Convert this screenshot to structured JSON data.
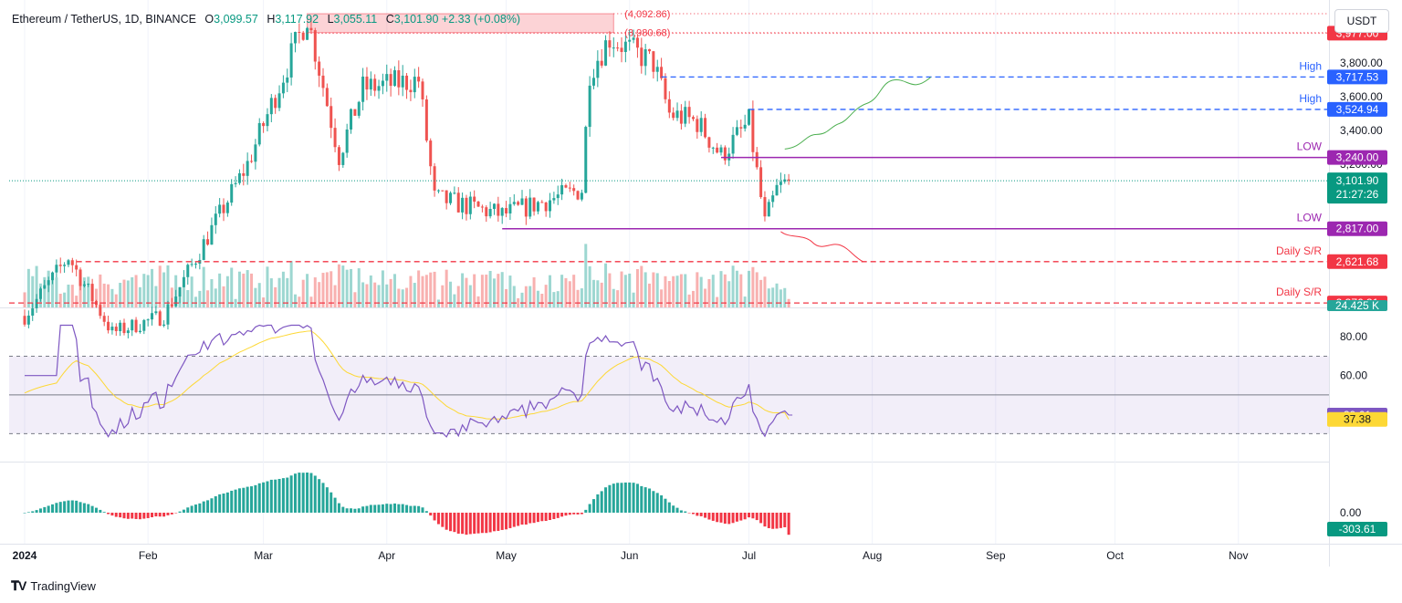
{
  "header": {
    "symbol": "Ethereum / TetherUS, 1D, BINANCE",
    "open": "3,099.57",
    "high": "3,117.92",
    "low": "3,055.11",
    "close": "3,101.90",
    "change": "+2.33 (+0.08%)",
    "o_label": "O",
    "h_label": "H",
    "l_label": "L",
    "c_label": "C"
  },
  "currency": "USDT",
  "brand": "TradingView",
  "colors": {
    "up": "#26a69a",
    "down": "#ef5350",
    "red_line": "#f23645",
    "blue_line": "#2962ff",
    "purple": "#9c27b0",
    "rsi": "#7e57c2",
    "rsi_ma": "#fdd835",
    "last_price": "#089981"
  },
  "chart_data": {
    "type": "candlestick",
    "x_axis_labels": [
      "2024",
      "Feb",
      "Mar",
      "Apr",
      "May",
      "Jun",
      "Jul",
      "Aug",
      "Sep",
      "Oct",
      "Nov"
    ],
    "y_ticks": [
      "3,800.00",
      "3,600.00",
      "3,400.00",
      "3,200.00"
    ],
    "ylim": [
      2350,
      4120
    ],
    "keypoints": [
      [
        "2024-01-01",
        2300
      ],
      [
        "2024-01-12",
        2650
      ],
      [
        "2024-01-23",
        2200
      ],
      [
        "2024-02-05",
        2300
      ],
      [
        "2024-02-26",
        3200
      ],
      [
        "2024-03-12",
        4080
      ],
      [
        "2024-03-20",
        3250
      ],
      [
        "2024-03-26",
        3650
      ],
      [
        "2024-04-09",
        3700
      ],
      [
        "2024-04-13",
        3000
      ],
      [
        "2024-04-30",
        2900
      ],
      [
        "2024-05-20",
        3050
      ],
      [
        "2024-05-22",
        3750
      ],
      [
        "2024-05-27",
        3950
      ],
      [
        "2024-06-07",
        3800
      ],
      [
        "2024-06-11",
        3500
      ],
      [
        "2024-06-18",
        3450
      ],
      [
        "2024-06-24",
        3250
      ],
      [
        "2024-07-01",
        3450
      ],
      [
        "2024-07-05",
        2850
      ],
      [
        "2024-07-08",
        3050
      ],
      [
        "2024-07-11",
        3102
      ]
    ],
    "last_close": 3101.9,
    "countdown": "21:27:26",
    "top_zone": {
      "upper": "(4,092.86)",
      "lower": "(3,980.68)",
      "upper_value": 4092.86,
      "lower_value": 3980.68
    },
    "levels": [
      {
        "value": 3977.0,
        "label": "",
        "price": "3,977.00",
        "style": "dotted",
        "color": "#f23645"
      },
      {
        "value": 3717.53,
        "label": "High",
        "price": "3,717.53",
        "style": "dashed",
        "color": "#2962ff"
      },
      {
        "value": 3524.94,
        "label": "High",
        "price": "3,524.94",
        "style": "dashed",
        "color": "#2962ff"
      },
      {
        "value": 3240.0,
        "label": "LOW",
        "price": "3,240.00",
        "style": "solid",
        "color": "#9c27b0"
      },
      {
        "value": 2817.0,
        "label": "LOW",
        "price": "2,817.00",
        "style": "solid",
        "color": "#9c27b0"
      },
      {
        "value": 2621.68,
        "label": "Daily S/R",
        "price": "2,621.68",
        "style": "dashed",
        "color": "#f23645"
      },
      {
        "value": 2376.31,
        "label": "Daily S/R",
        "price": "2,376.31",
        "style": "dashed",
        "color": "#f23645"
      }
    ],
    "volume_label": "24.425 K",
    "rsi": {
      "value": "39.61",
      "ma_value": "37.38",
      "ticks": [
        "80.00",
        "60.00"
      ],
      "upper_band": 70,
      "mid": 50,
      "lower_band": 30
    },
    "macd": {
      "tick": "0.00",
      "value": "-303.61"
    }
  }
}
